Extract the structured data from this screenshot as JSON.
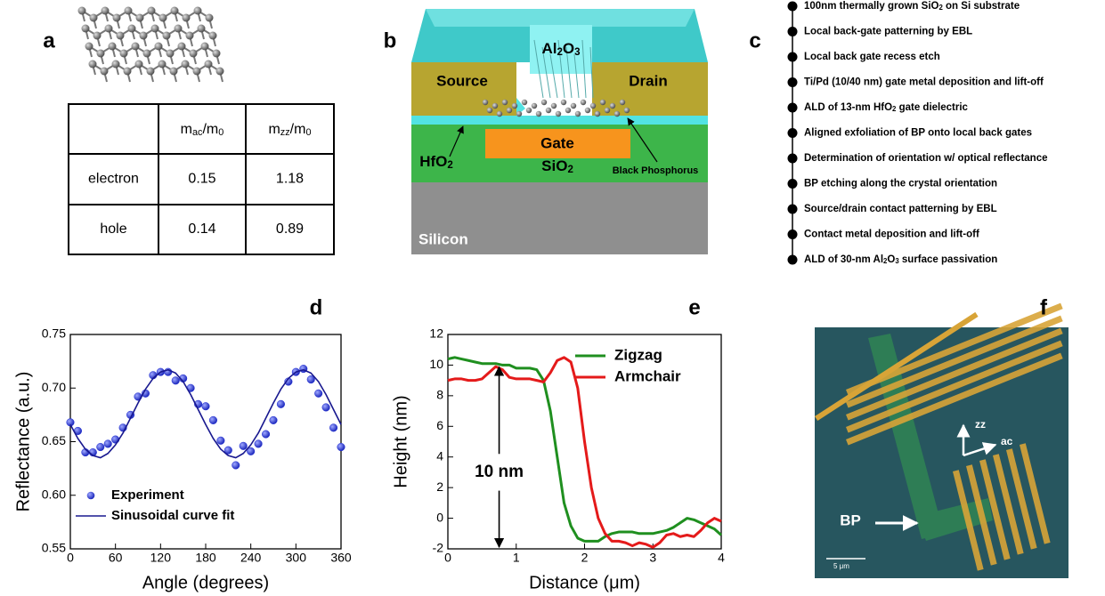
{
  "panel_labels": [
    "a",
    "b",
    "c",
    "d",
    "e",
    "f"
  ],
  "table": {
    "header": [
      null,
      [
        "m",
        {
          "sub": "ac"
        },
        "/m",
        {
          "sub": "0"
        }
      ],
      [
        "m",
        {
          "sub": "zz"
        },
        "/m",
        {
          "sub": "0"
        }
      ]
    ],
    "rows": [
      [
        "electron",
        0.15,
        1.18
      ],
      [
        "hole",
        0.14,
        0.89
      ]
    ]
  },
  "device": {
    "top_layer": [
      "Al",
      {
        "sub": "2"
      },
      "O",
      {
        "sub": "3"
      }
    ],
    "source": "Source",
    "drain": "Drain",
    "gate": "Gate",
    "dielectric": [
      "HfO",
      {
        "sub": "2"
      }
    ],
    "oxide": [
      "SiO",
      {
        "sub": "2"
      }
    ],
    "channel": "Black Phosphorus",
    "substrate": "Silicon"
  },
  "process_steps": [
    [
      "100nm thermally grown SiO",
      {
        "sub": "2"
      },
      " on Si substrate"
    ],
    "Local back-gate patterning by EBL",
    "Local back gate recess etch",
    "Ti/Pd (10/40 nm) gate metal deposition and lift-off",
    [
      "ALD of 13-nm HfO",
      {
        "sub": "2"
      },
      " gate dielectric"
    ],
    "Aligned exfoliation of BP onto local back gates",
    "Determination of orientation w/ optical reflectance",
    "BP etching along the crystal orientation",
    "Source/drain contact patterning by EBL",
    "Contact metal deposition and lift-off",
    [
      "ALD of 30-nm Al",
      {
        "sub": "2"
      },
      "O",
      {
        "sub": "3"
      },
      " surface passivation"
    ]
  ],
  "micrograph": {
    "flake": "BP",
    "axis_zz": "zz",
    "axis_ac": "ac",
    "scale_bar": "5 μm"
  },
  "chart_data": [
    {
      "type": "line",
      "x_label": "Angle (degrees)",
      "y_label": "Reflectance (a.u.)",
      "x": [
        0,
        10,
        20,
        30,
        40,
        50,
        60,
        70,
        80,
        90,
        100,
        110,
        120,
        130,
        140,
        150,
        160,
        170,
        180,
        190,
        200,
        210,
        220,
        230,
        240,
        250,
        260,
        270,
        280,
        290,
        300,
        310,
        320,
        330,
        340,
        350,
        360
      ],
      "series": [
        {
          "name": "Experiment",
          "type": "scatter",
          "color": "#2432d6",
          "values": [
            0.668,
            0.66,
            0.64,
            0.64,
            0.645,
            0.648,
            0.652,
            0.663,
            0.675,
            0.692,
            0.695,
            0.712,
            0.715,
            0.715,
            0.707,
            0.709,
            0.7,
            0.685,
            0.683,
            0.67,
            0.651,
            0.642,
            0.628,
            0.646,
            0.641,
            0.648,
            0.657,
            0.67,
            0.685,
            0.706,
            0.715,
            0.718,
            0.708,
            0.695,
            0.682,
            0.663,
            0.645
          ]
        },
        {
          "name": "Sinusoidal curve fit",
          "type": "line",
          "color": "#18188f",
          "values": [
            0.666,
            0.653,
            0.643,
            0.637,
            0.635,
            0.639,
            0.647,
            0.658,
            0.672,
            0.686,
            0.699,
            0.709,
            0.715,
            0.717,
            0.714,
            0.706,
            0.694,
            0.68,
            0.666,
            0.653,
            0.643,
            0.637,
            0.635,
            0.639,
            0.647,
            0.658,
            0.672,
            0.686,
            0.699,
            0.709,
            0.715,
            0.717,
            0.714,
            0.706,
            0.694,
            0.68,
            0.666
          ]
        }
      ],
      "xlim": [
        0,
        360
      ],
      "xticks": [
        0,
        60,
        120,
        180,
        240,
        300,
        360
      ],
      "ylim": [
        0.55,
        0.75
      ],
      "yticks": [
        0.55,
        {
          "value": 0.6,
          "label": "0.60"
        },
        0.65,
        {
          "value": 0.7,
          "label": "0.70"
        },
        0.75
      ],
      "legend": "lower left"
    },
    {
      "type": "line",
      "x_label": "Distance (μm)",
      "y_label": "Height (nm)",
      "annotation": "10 nm",
      "x": [
        0,
        0.1,
        0.2,
        0.3,
        0.4,
        0.5,
        0.6,
        0.7,
        0.8,
        0.9,
        1,
        1.1,
        1.2,
        1.3,
        1.4,
        1.5,
        1.6,
        1.7,
        1.8,
        1.9,
        2,
        2.1,
        2.2,
        2.3,
        2.4,
        2.5,
        2.6,
        2.7,
        2.8,
        2.9,
        3,
        3.1,
        3.2,
        3.3,
        3.4,
        3.5,
        3.6,
        3.7,
        3.8,
        3.9,
        4
      ],
      "series": [
        {
          "name": "Zigzag",
          "type": "line",
          "color": "#1f8f1f",
          "values": [
            10.4,
            10.5,
            10.4,
            10.3,
            10.2,
            10.1,
            10.1,
            10.1,
            10.0,
            10.0,
            9.8,
            9.8,
            9.8,
            9.7,
            9.0,
            7.0,
            4.0,
            1.0,
            -0.5,
            -1.3,
            -1.5,
            -1.5,
            -1.5,
            -1.2,
            -1.0,
            -0.9,
            -0.9,
            -0.9,
            -1.0,
            -1.0,
            -1.0,
            -0.9,
            -0.8,
            -0.6,
            -0.3,
            0.0,
            -0.1,
            -0.3,
            -0.5,
            -0.7,
            -1.1
          ]
        },
        {
          "name": "Armchair",
          "type": "line",
          "color": "#e41a1a",
          "values": [
            9.0,
            9.1,
            9.1,
            9.0,
            9.0,
            9.1,
            9.5,
            9.9,
            9.7,
            9.2,
            9.1,
            9.1,
            9.1,
            9.0,
            8.9,
            9.5,
            10.3,
            10.5,
            10.2,
            8.5,
            5.0,
            2.0,
            0.0,
            -1.0,
            -1.5,
            -1.5,
            -1.6,
            -1.8,
            -1.6,
            -1.7,
            -1.9,
            -1.6,
            -1.1,
            -1.0,
            -1.2,
            -1.1,
            -1.2,
            -0.8,
            -0.3,
            0.0,
            -0.2
          ]
        }
      ],
      "xlim": [
        0,
        4
      ],
      "xticks": [
        0,
        1,
        2,
        3,
        4
      ],
      "ylim": [
        -2,
        12
      ],
      "yticks": [
        -2,
        0,
        2,
        4,
        6,
        8,
        10,
        12
      ],
      "legend": "upper right"
    }
  ]
}
